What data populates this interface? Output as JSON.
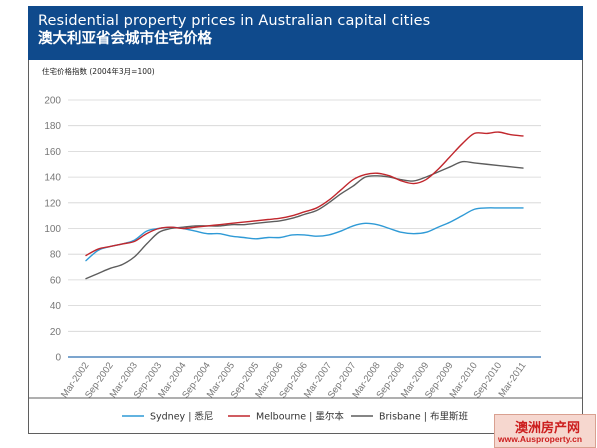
{
  "header": {
    "title_en": "Residential property prices in Australian capital cities",
    "title_zh": "澳大利亚省会城市住宅价格"
  },
  "watermark": {
    "name_zh": "澳洲房产网",
    "url": "www.Ausproperty.cn"
  },
  "colors": {
    "header_bg": "#0f4a8c",
    "sydney": "#2f9ad6",
    "melbourne": "#c1272d",
    "brisbane": "#5d5d5d"
  },
  "chart_data": {
    "type": "line",
    "title": "Residential property prices in Australian capital cities",
    "subtitle": "澳大利亚省会城市住宅价格",
    "ylabel": "住宅价格指数 (2004年3月=100)",
    "xlabel": "",
    "ylim": [
      0,
      200
    ],
    "yticks": [
      0,
      20,
      40,
      60,
      80,
      100,
      120,
      140,
      160,
      180,
      200
    ],
    "x": [
      "Mar-2002",
      "Jun-2002",
      "Sep-2002",
      "Dec-2002",
      "Mar-2003",
      "Jun-2003",
      "Sep-2003",
      "Dec-2003",
      "Mar-2004",
      "Jun-2004",
      "Sep-2004",
      "Dec-2004",
      "Mar-2005",
      "Jun-2005",
      "Sep-2005",
      "Dec-2005",
      "Mar-2006",
      "Jun-2006",
      "Sep-2006",
      "Dec-2006",
      "Mar-2007",
      "Jun-2007",
      "Sep-2007",
      "Dec-2007",
      "Mar-2008",
      "Jun-2008",
      "Sep-2008",
      "Dec-2008",
      "Mar-2009",
      "Jun-2009",
      "Sep-2009",
      "Dec-2009",
      "Mar-2010",
      "Jun-2010",
      "Sep-2010",
      "Dec-2010",
      "Mar-2011"
    ],
    "xtick_labels": [
      "Mar-2002",
      "Sep-2002",
      "Mar-2003",
      "Sep-2003",
      "Mar-2004",
      "Sep-2004",
      "Mar-2005",
      "Sep-2005",
      "Mar-2006",
      "Sep-2006",
      "Mar-2007",
      "Sep-2007",
      "Mar-2008",
      "Sep-2008",
      "Mar-2009",
      "Sep-2009",
      "Mar-2010",
      "Sep-2010",
      "Mar-2011"
    ],
    "grid": true,
    "legend_position": "bottom",
    "series": [
      {
        "name": "Sydney | 悉尼",
        "values": [
          75,
          83,
          86,
          88,
          91,
          98,
          100,
          101,
          100,
          98,
          96,
          96,
          94,
          93,
          92,
          93,
          93,
          95,
          95,
          94,
          95,
          98,
          102,
          104,
          103,
          100,
          97,
          96,
          97,
          101,
          105,
          110,
          115,
          116,
          116,
          116,
          116
        ]
      },
      {
        "name": "Melbourne | 墨尔本",
        "values": [
          79,
          84,
          86,
          88,
          90,
          96,
          100,
          101,
          100,
          101,
          102,
          103,
          104,
          105,
          106,
          107,
          108,
          110,
          113,
          116,
          122,
          130,
          138,
          142,
          143,
          141,
          137,
          135,
          138,
          146,
          156,
          166,
          174,
          174,
          175,
          173,
          172
        ]
      },
      {
        "name": "Brisbane | 布里斯班",
        "values": [
          61,
          65,
          69,
          72,
          78,
          88,
          97,
          100,
          101,
          102,
          102,
          102,
          103,
          103,
          104,
          105,
          106,
          108,
          111,
          114,
          120,
          127,
          133,
          140,
          141,
          140,
          138,
          137,
          140,
          144,
          148,
          152,
          151,
          150,
          149,
          148,
          147
        ]
      }
    ]
  }
}
